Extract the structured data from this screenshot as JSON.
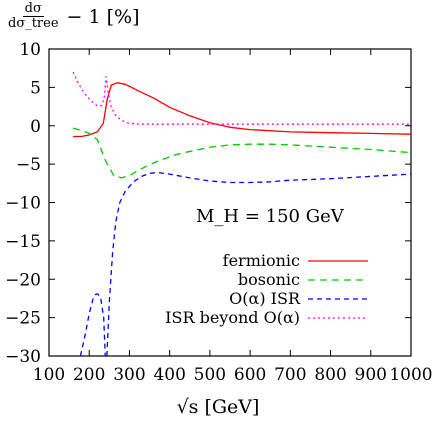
{
  "chart_data": {
    "type": "line",
    "ylabel_numerator": "dσ",
    "ylabel_denominator": "dσ_tree",
    "ylabel_suffix": "− 1 [%]",
    "xlabel": "√s [GeV]",
    "annotation": "M_H = 150 GeV",
    "xlim": [
      100,
      1000
    ],
    "ylim": [
      -30,
      10
    ],
    "xticks": [
      "100",
      "200",
      "300",
      "400",
      "500",
      "600",
      "700",
      "800",
      "900",
      "1000"
    ],
    "yticks": [
      "10",
      "5",
      "0",
      "−5",
      "−10",
      "−15",
      "−20",
      "−25",
      "−30"
    ],
    "xtick_values": [
      100,
      200,
      300,
      400,
      500,
      600,
      700,
      800,
      900,
      1000
    ],
    "ytick_values": [
      10,
      5,
      0,
      -5,
      -10,
      -15,
      -20,
      -25,
      -30
    ],
    "legend_position": "bottom-right",
    "series": [
      {
        "name": "fermionic",
        "color": "#ff0000",
        "dash": "solid",
        "x": [
          160,
          180,
          200,
          220,
          235,
          245,
          255,
          270,
          290,
          320,
          360,
          400,
          450,
          500,
          550,
          600,
          700,
          800,
          900,
          1000
        ],
        "y": [
          -1.4,
          -1.4,
          -1.2,
          -0.8,
          0.3,
          3.5,
          5.3,
          5.6,
          5.4,
          4.6,
          3.6,
          2.4,
          1.3,
          0.4,
          -0.2,
          -0.5,
          -0.8,
          -0.9,
          -1.0,
          -1.1
        ]
      },
      {
        "name": "bosonic",
        "color": "#00cc00",
        "dash": "7,5",
        "x": [
          160,
          180,
          200,
          220,
          240,
          260,
          280,
          300,
          330,
          370,
          420,
          500,
          550,
          600,
          650,
          700,
          800,
          900,
          1000
        ],
        "y": [
          -0.3,
          -0.6,
          -1.0,
          -1.8,
          -4.5,
          -6.4,
          -6.8,
          -6.5,
          -5.6,
          -4.6,
          -3.7,
          -2.8,
          -2.5,
          -2.4,
          -2.4,
          -2.5,
          -2.8,
          -3.1,
          -3.5
        ]
      },
      {
        "name": "O(α) ISR",
        "color": "#0000ff",
        "dash": "5,4",
        "segments": [
          {
            "x": [
              178,
              190,
              200,
              210,
              215,
              220,
              228,
              236,
              240
            ],
            "y": [
              -30,
              -27.2,
              -24.5,
              -22.5,
              -22.0,
              -21.9,
              -22.3,
              -25.0,
              -30
            ]
          },
          {
            "x": [
              244,
              250,
              258,
              266,
              276,
              290,
              310,
              330,
              350,
              370,
              400,
              450,
              500,
              550,
              600,
              650,
              700,
              800,
              900,
              1000
            ],
            "y": [
              -30,
              -23.0,
              -16.5,
              -12.5,
              -10.0,
              -8.5,
              -7.3,
              -6.6,
              -6.2,
              -6.1,
              -6.3,
              -6.8,
              -7.2,
              -7.4,
              -7.4,
              -7.3,
              -7.1,
              -6.9,
              -6.6,
              -6.3
            ]
          }
        ]
      },
      {
        "name": "ISR beyond O(α)",
        "color": "#ff00ff",
        "dash": "2,3",
        "x": [
          160,
          170,
          180,
          190,
          200,
          210,
          220,
          230,
          237,
          242,
          248,
          255,
          265,
          280,
          300,
          330,
          400,
          500,
          600,
          700,
          800,
          900,
          1000
        ],
        "y": [
          7.0,
          5.8,
          4.9,
          4.1,
          3.5,
          3.0,
          2.6,
          2.6,
          3.5,
          6.4,
          4.0,
          2.4,
          1.4,
          0.7,
          0.3,
          0.2,
          0.2,
          0.2,
          0.2,
          0.2,
          0.2,
          0.2,
          0.2
        ]
      }
    ]
  }
}
